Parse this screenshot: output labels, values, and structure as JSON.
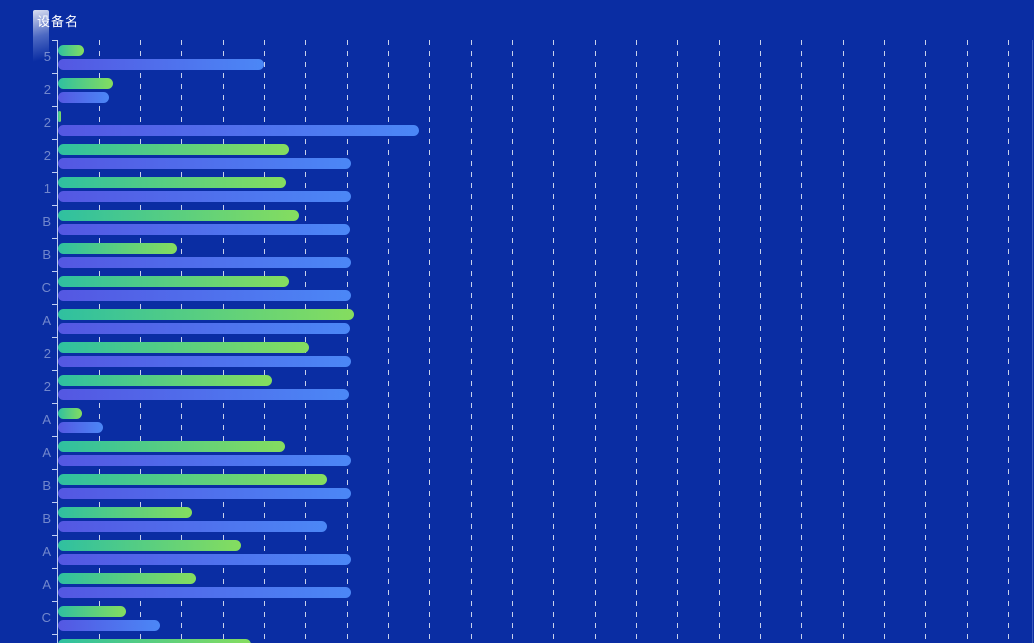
{
  "title": "设备名",
  "colors": {
    "background": "#0a2da3",
    "bar_green_gradient_start": "#2fc0a0",
    "bar_green_gradient_end": "#85dd5f",
    "bar_blue_gradient_start": "#5457e2",
    "bar_blue_gradient_end": "#4b87f6",
    "gridline": "rgba(255,255,255,0.78)",
    "axis": "rgba(225,235,255,0.85)",
    "y_label": "rgba(198,210,240,0.55)"
  },
  "chart_data": {
    "type": "bar",
    "orientation": "horizontal",
    "title": "设备名",
    "xlabel": "",
    "ylabel": "设备名",
    "grid": "vertical dashed gridlines, one per division",
    "legend_position": "none",
    "note": "Y-axis category labels are truncated by the left edge of the viewport; only the last character of each device name is visible. X-axis has no visible numeric labels; values are expressed in gridline divisions (1 division = 1 gridline spacing). Last category row and chart bottom are cut off by the viewport.",
    "xlim": [
      0,
      23.62
    ],
    "categories": [
      "5",
      "2",
      "2",
      "2",
      "1",
      "B",
      "B",
      "C",
      "A",
      "2",
      "2",
      "A",
      "A",
      "B",
      "B",
      "A",
      "A",
      "C",
      ""
    ],
    "series": [
      {
        "name": "series-green",
        "color": "green-gradient",
        "values": [
          0.62,
          1.34,
          0.08,
          5.58,
          5.52,
          5.83,
          2.88,
          5.58,
          7.16,
          6.07,
          5.18,
          0.59,
          5.5,
          6.51,
          3.25,
          4.42,
          3.33,
          1.65,
          4.66
        ]
      },
      {
        "name": "series-blue",
        "color": "blue-gradient",
        "values": [
          4.98,
          1.23,
          8.73,
          7.08,
          7.08,
          7.06,
          7.08,
          7.08,
          7.06,
          7.1,
          7.05,
          1.09,
          7.09,
          7.08,
          6.5,
          7.09,
          7.09,
          2.46,
          null
        ]
      }
    ]
  }
}
